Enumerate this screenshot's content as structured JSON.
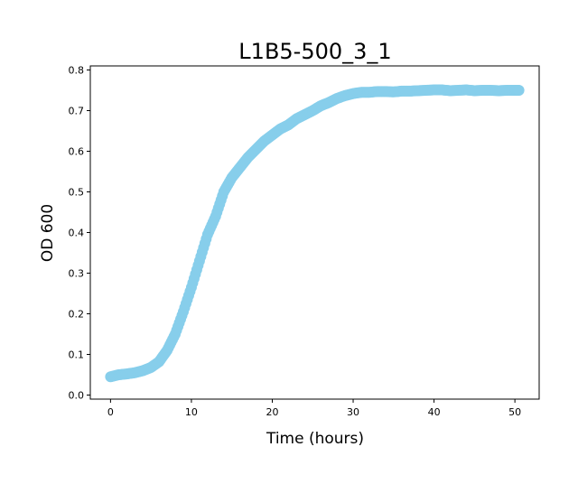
{
  "chart_data": {
    "type": "scatter",
    "title": "L1B5-500_3_1",
    "xlabel": "Time (hours)",
    "ylabel": "OD 600",
    "xlim": [
      -2.5,
      53
    ],
    "ylim": [
      -0.01,
      0.81
    ],
    "xticks": [
      0,
      10,
      20,
      30,
      40,
      50
    ],
    "yticks": [
      0.0,
      0.1,
      0.2,
      0.3,
      0.4,
      0.5,
      0.6,
      0.7,
      0.8
    ],
    "grid": false,
    "legend": "none",
    "marker_color": "#87ceeb",
    "series": [
      {
        "x": [
          0,
          1,
          2,
          3,
          4,
          5,
          6,
          7,
          8,
          9,
          10,
          11,
          12,
          13,
          14,
          15,
          16,
          17,
          18,
          19,
          20,
          21,
          22,
          23,
          24,
          25,
          26,
          27,
          28,
          29,
          30,
          31,
          32,
          33,
          34,
          35,
          36,
          37,
          38,
          39,
          40,
          41,
          42,
          43,
          44,
          45,
          46,
          47,
          48,
          49,
          50,
          50.5
        ],
        "y": [
          0.045,
          0.05,
          0.052,
          0.055,
          0.06,
          0.068,
          0.082,
          0.11,
          0.15,
          0.205,
          0.265,
          0.33,
          0.395,
          0.44,
          0.5,
          0.535,
          0.56,
          0.585,
          0.605,
          0.625,
          0.64,
          0.655,
          0.665,
          0.68,
          0.69,
          0.7,
          0.712,
          0.72,
          0.73,
          0.737,
          0.742,
          0.745,
          0.745,
          0.747,
          0.747,
          0.746,
          0.748,
          0.748,
          0.749,
          0.75,
          0.751,
          0.751,
          0.749,
          0.75,
          0.751,
          0.749,
          0.75,
          0.75,
          0.749,
          0.75,
          0.75,
          0.75
        ]
      }
    ]
  }
}
